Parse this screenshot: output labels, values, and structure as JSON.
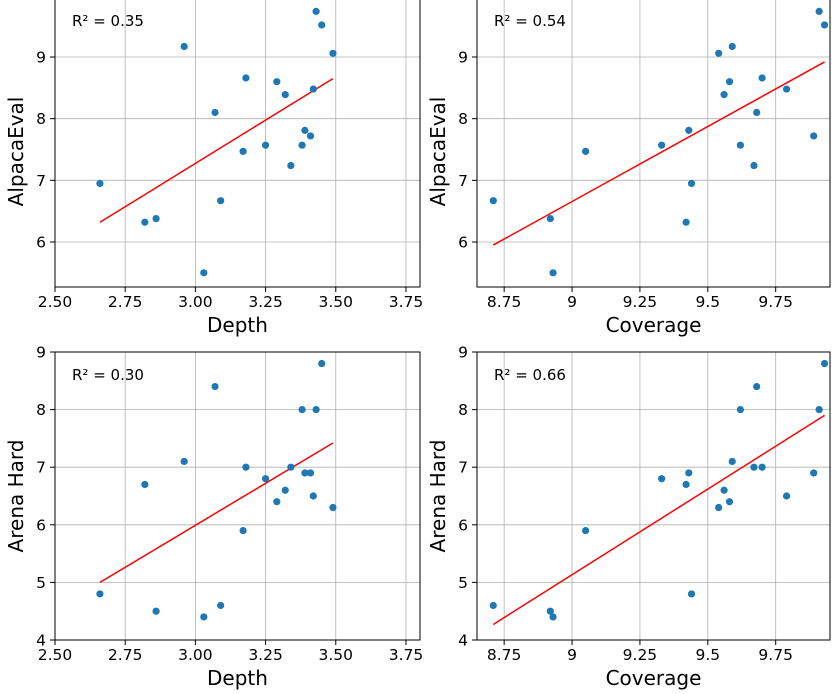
{
  "chart_data": [
    {
      "type": "scatter",
      "xlabel": "Depth",
      "ylabel": "AlpacaEval",
      "annotation": "R² = 0.35",
      "xlim": [
        2.5,
        3.8
      ],
      "ylim": [
        5.3,
        9.9
      ],
      "xticks": [
        2.5,
        2.75,
        3.0,
        3.25,
        3.5,
        3.75
      ],
      "xtick_labels": [
        "2.50",
        "2.75",
        "3.00",
        "3.25",
        "3.50",
        "3.75"
      ],
      "yticks": [
        6,
        7,
        8,
        9
      ],
      "ytick_labels": [
        "6",
        "7",
        "8",
        "9"
      ],
      "points": {
        "x": [
          2.66,
          2.82,
          2.86,
          2.96,
          3.03,
          3.07,
          3.09,
          3.17,
          3.18,
          3.25,
          3.29,
          3.32,
          3.34,
          3.38,
          3.39,
          3.41,
          3.42,
          3.43,
          3.45,
          3.49
        ],
        "y": [
          6.95,
          6.32,
          6.38,
          9.17,
          5.5,
          8.1,
          6.67,
          7.47,
          8.66,
          7.57,
          8.6,
          8.39,
          7.24,
          7.57,
          7.81,
          7.72,
          8.48,
          9.74,
          9.52,
          9.06
        ]
      },
      "fit_line": {
        "x": [
          2.66,
          3.49
        ],
        "y": [
          6.32,
          8.65
        ]
      },
      "colors": {
        "points": "#1f77b4",
        "fit": "#ff0000"
      }
    },
    {
      "type": "scatter",
      "xlabel": "Coverage",
      "ylabel": "AlpacaEval",
      "annotation": "R² = 0.54",
      "xlim": [
        8.65,
        9.95
      ],
      "ylim": [
        5.3,
        9.9
      ],
      "xticks": [
        8.75,
        9.0,
        9.25,
        9.5,
        9.75
      ],
      "xtick_labels": [
        "8.75",
        "9",
        "9.25",
        "9.5",
        "9.75"
      ],
      "yticks": [
        6,
        7,
        8,
        9
      ],
      "ytick_labels": [
        "6",
        "7",
        "8",
        "9"
      ],
      "points": {
        "x": [
          8.71,
          8.92,
          8.93,
          9.05,
          9.33,
          9.42,
          9.43,
          9.44,
          9.54,
          9.56,
          9.58,
          9.59,
          9.62,
          9.67,
          9.68,
          9.7,
          9.79,
          9.89,
          9.91,
          9.93
        ],
        "y": [
          6.67,
          6.38,
          5.5,
          7.47,
          7.57,
          6.32,
          7.81,
          6.95,
          9.06,
          8.39,
          8.6,
          9.17,
          7.57,
          7.24,
          8.1,
          8.66,
          8.48,
          7.72,
          9.74,
          9.52
        ]
      },
      "fit_line": {
        "x": [
          8.71,
          9.93
        ],
        "y": [
          5.95,
          8.92
        ]
      },
      "colors": {
        "points": "#1f77b4",
        "fit": "#ff0000"
      }
    },
    {
      "type": "scatter",
      "xlabel": "Depth",
      "ylabel": "Arena Hard",
      "annotation": "R² = 0.30",
      "xlim": [
        2.5,
        3.8
      ],
      "ylim": [
        4.0,
        9.0
      ],
      "xticks": [
        2.5,
        2.75,
        3.0,
        3.25,
        3.5,
        3.75
      ],
      "xtick_labels": [
        "2.50",
        "2.75",
        "3.00",
        "3.25",
        "3.50",
        "3.75"
      ],
      "yticks": [
        4,
        5,
        6,
        7,
        8,
        9
      ],
      "ytick_labels": [
        "4",
        "5",
        "6",
        "7",
        "8",
        "9"
      ],
      "points": {
        "x": [
          2.66,
          2.82,
          2.86,
          2.96,
          3.03,
          3.07,
          3.09,
          3.17,
          3.18,
          3.25,
          3.29,
          3.32,
          3.34,
          3.38,
          3.39,
          3.41,
          3.42,
          3.43,
          3.45,
          3.49
        ],
        "y": [
          4.8,
          6.7,
          4.5,
          7.1,
          4.4,
          8.4,
          4.6,
          5.9,
          7.0,
          6.8,
          6.4,
          6.6,
          7.0,
          8.0,
          6.9,
          6.9,
          6.5,
          8.0,
          8.8,
          6.3
        ]
      },
      "fit_line": {
        "x": [
          2.66,
          3.49
        ],
        "y": [
          5.0,
          7.42
        ]
      },
      "colors": {
        "points": "#1f77b4",
        "fit": "#ff0000"
      }
    },
    {
      "type": "scatter",
      "xlabel": "Coverage",
      "ylabel": "Arena Hard",
      "annotation": "R² = 0.66",
      "xlim": [
        8.65,
        9.95
      ],
      "ylim": [
        4.0,
        9.0
      ],
      "xticks": [
        8.75,
        9.0,
        9.25,
        9.5,
        9.75
      ],
      "xtick_labels": [
        "8.75",
        "9",
        "9.25",
        "9.5",
        "9.75"
      ],
      "yticks": [
        4,
        5,
        6,
        7,
        8,
        9
      ],
      "ytick_labels": [
        "4",
        "5",
        "6",
        "7",
        "8",
        "9"
      ],
      "points": {
        "x": [
          8.71,
          8.92,
          8.93,
          9.05,
          9.33,
          9.42,
          9.43,
          9.44,
          9.54,
          9.56,
          9.58,
          9.59,
          9.62,
          9.67,
          9.68,
          9.7,
          9.79,
          9.89,
          9.91,
          9.93
        ],
        "y": [
          4.6,
          4.5,
          4.4,
          5.9,
          6.8,
          6.7,
          6.9,
          4.8,
          6.3,
          6.6,
          6.4,
          7.1,
          8.0,
          7.0,
          8.4,
          7.0,
          6.5,
          6.9,
          8.0,
          8.8
        ]
      },
      "fit_line": {
        "x": [
          8.71,
          9.93
        ],
        "y": [
          4.27,
          7.9
        ]
      },
      "colors": {
        "points": "#1f77b4",
        "fit": "#ff0000"
      }
    }
  ]
}
